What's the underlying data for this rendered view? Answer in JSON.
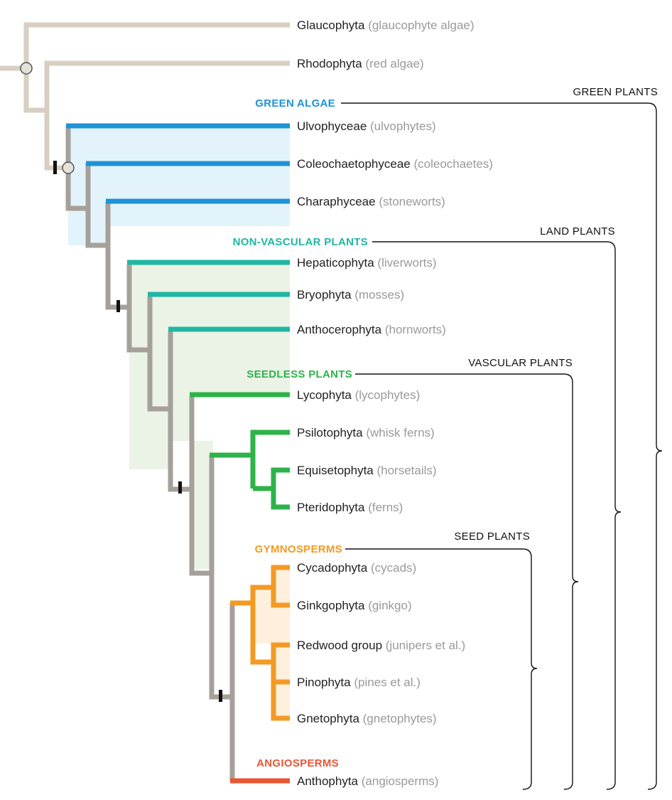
{
  "colors": {
    "outgroup_branch": "#d8cfc2",
    "backbone_branch": "#a5a09a",
    "green_algae": "#1f93d6",
    "green_algae_fill": "#e3f3fc",
    "non_vascular": "#1fb7a3",
    "land_fill": "#eaf3e6",
    "seedless": "#2db34a",
    "gymnosperms": "#f39a24",
    "gymno_fill": "#fef0dc",
    "angiosperms": "#ea5533",
    "node_marker": "#e4e2d6",
    "tick": "#111111"
  },
  "group_labels": {
    "green_algae": "GREEN ALGAE",
    "non_vascular": "NON-VASCULAR PLANTS",
    "seedless": "SEEDLESS PLANTS",
    "gymnosperms": "GYMNOSPERMS",
    "angiosperms": "ANGIOSPERMS"
  },
  "clades": {
    "green_plants": "GREEN PLANTS",
    "land_plants": "LAND PLANTS",
    "vascular_plants": "VASCULAR PLANTS",
    "seed_plants": "SEED PLANTS"
  },
  "taxa": [
    {
      "name": "Glaucophyta",
      "common": "(glaucophyte algae)"
    },
    {
      "name": "Rhodophyta",
      "common": "(red algae)"
    },
    {
      "name": "Ulvophyceae",
      "common": "(ulvophytes)"
    },
    {
      "name": "Coleochaetophyceae",
      "common": "(coleochaetes)"
    },
    {
      "name": "Charaphyceae",
      "common": "(stoneworts)"
    },
    {
      "name": "Hepaticophyta",
      "common": "(liverworts)"
    },
    {
      "name": "Bryophyta",
      "common": "(mosses)"
    },
    {
      "name": "Anthocerophyta",
      "common": "(hornworts)"
    },
    {
      "name": "Lycophyta",
      "common": "(lycophytes)"
    },
    {
      "name": "Psilotophyta",
      "common": "(whisk ferns)"
    },
    {
      "name": "Equisetophyta",
      "common": "(horsetails)"
    },
    {
      "name": "Pteridophyta",
      "common": "(ferns)"
    },
    {
      "name": "Cycadophyta",
      "common": "(cycads)"
    },
    {
      "name": "Ginkgophyta",
      "common": "(ginkgo)"
    },
    {
      "name": "Redwood group",
      "common": "(junipers et al.)"
    },
    {
      "name": "Pinophyta",
      "common": "(pines et al.)"
    },
    {
      "name": "Gnetophyta",
      "common": "(gnetophytes)"
    },
    {
      "name": "Anthophyta",
      "common": "(angiosperms)"
    }
  ]
}
